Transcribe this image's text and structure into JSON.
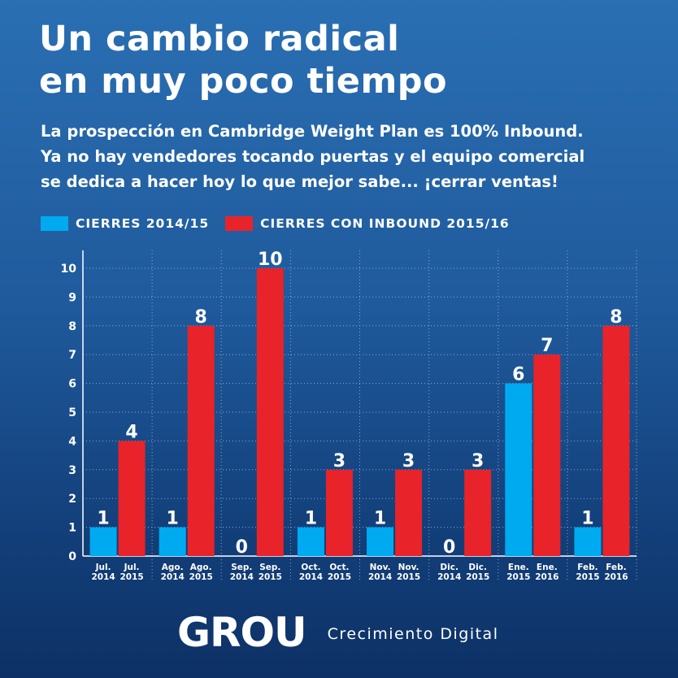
{
  "header": {
    "title_line1": "Un cambio radical",
    "title_line2": "en muy poco tiempo",
    "subtitle_line1": "La prospección en Cambridge Weight Plan es 100% Inbound.",
    "subtitle_line2": "Ya no hay vendedores tocando puertas y el equipo comercial",
    "subtitle_line3": "se dedica a hacer hoy lo que mejor sabe... ¡cerrar ventas!"
  },
  "colors": {
    "series1": "#00aaf0",
    "series2": "#e8232a"
  },
  "chart_data": {
    "type": "bar",
    "ylim": [
      0,
      10
    ],
    "yticks": [
      0,
      1,
      2,
      3,
      4,
      5,
      6,
      7,
      8,
      9,
      10
    ],
    "grid": true,
    "legend_position": "top-left",
    "series": [
      {
        "name": "CIERRES 2014/15",
        "values": [
          1,
          1,
          0,
          1,
          1,
          0,
          6,
          1
        ],
        "labels": [
          [
            "Jul.",
            "2014"
          ],
          [
            "Ago.",
            "2014"
          ],
          [
            "Sep.",
            "2014"
          ],
          [
            "Oct.",
            "2014"
          ],
          [
            "Nov.",
            "2014"
          ],
          [
            "Dic.",
            "2014"
          ],
          [
            "Ene.",
            "2015"
          ],
          [
            "Feb.",
            "2015"
          ]
        ]
      },
      {
        "name": "CIERRES CON INBOUND 2015/16",
        "values": [
          4,
          8,
          10,
          3,
          3,
          3,
          7,
          8
        ],
        "labels": [
          [
            "Jul.",
            "2015"
          ],
          [
            "Ago.",
            "2015"
          ],
          [
            "Sep.",
            "2015"
          ],
          [
            "Oct.",
            "2015"
          ],
          [
            "Nov.",
            "2015"
          ],
          [
            "Dic.",
            "2015"
          ],
          [
            "Ene.",
            "2016"
          ],
          [
            "Feb.",
            "2016"
          ]
        ]
      }
    ]
  },
  "footer": {
    "logo_text": "GROU",
    "tagline": "Crecimiento Digital"
  }
}
